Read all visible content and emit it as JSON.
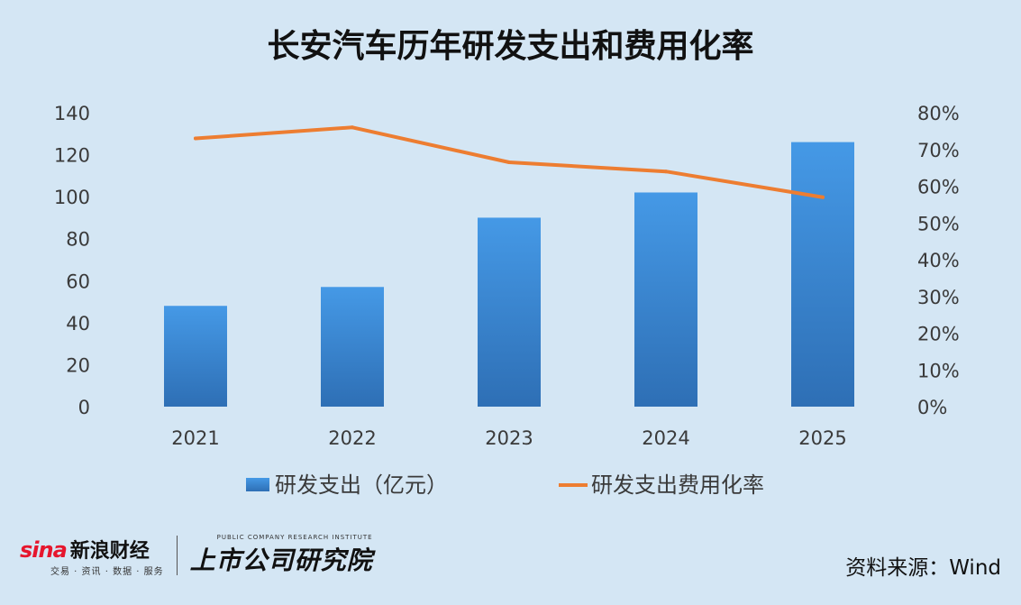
{
  "header": {
    "title": "长安汽车历年研发支出和费用化率"
  },
  "chart_data": {
    "type": "bar",
    "title": "长安汽车历年研发支出和费用化率",
    "categories": [
      "2021",
      "2022",
      "2023",
      "2024",
      "2025"
    ],
    "series": [
      {
        "name": "研发支出（亿元）",
        "type": "bar",
        "axis": "left",
        "values": [
          48,
          57,
          90,
          102,
          126
        ],
        "color": "#3a8fdc"
      },
      {
        "name": "研发支出费用化率",
        "type": "line",
        "axis": "right",
        "values": [
          73,
          76,
          66.5,
          64,
          57
        ],
        "color": "#ed7d31"
      }
    ],
    "y_left": {
      "min": 0,
      "max": 140,
      "step": 20,
      "ticks": [
        "0",
        "20",
        "40",
        "60",
        "80",
        "100",
        "120",
        "140"
      ]
    },
    "y_right": {
      "min": 0,
      "max": 80,
      "step": 10,
      "ticks": [
        "0%",
        "10%",
        "20%",
        "30%",
        "40%",
        "50%",
        "60%",
        "70%",
        "80%"
      ]
    },
    "grid": false,
    "legend_position": "bottom"
  },
  "footer": {
    "sina_word": "sina",
    "sina_brand": "新浪财经",
    "sina_sub": "交易 · 资讯 · 数据 · 服务",
    "inst_en": "PUBLIC COMPANY RESEARCH INSTITUTE",
    "inst_cn": "上市公司研究院",
    "source": "资料来源：Wind"
  }
}
